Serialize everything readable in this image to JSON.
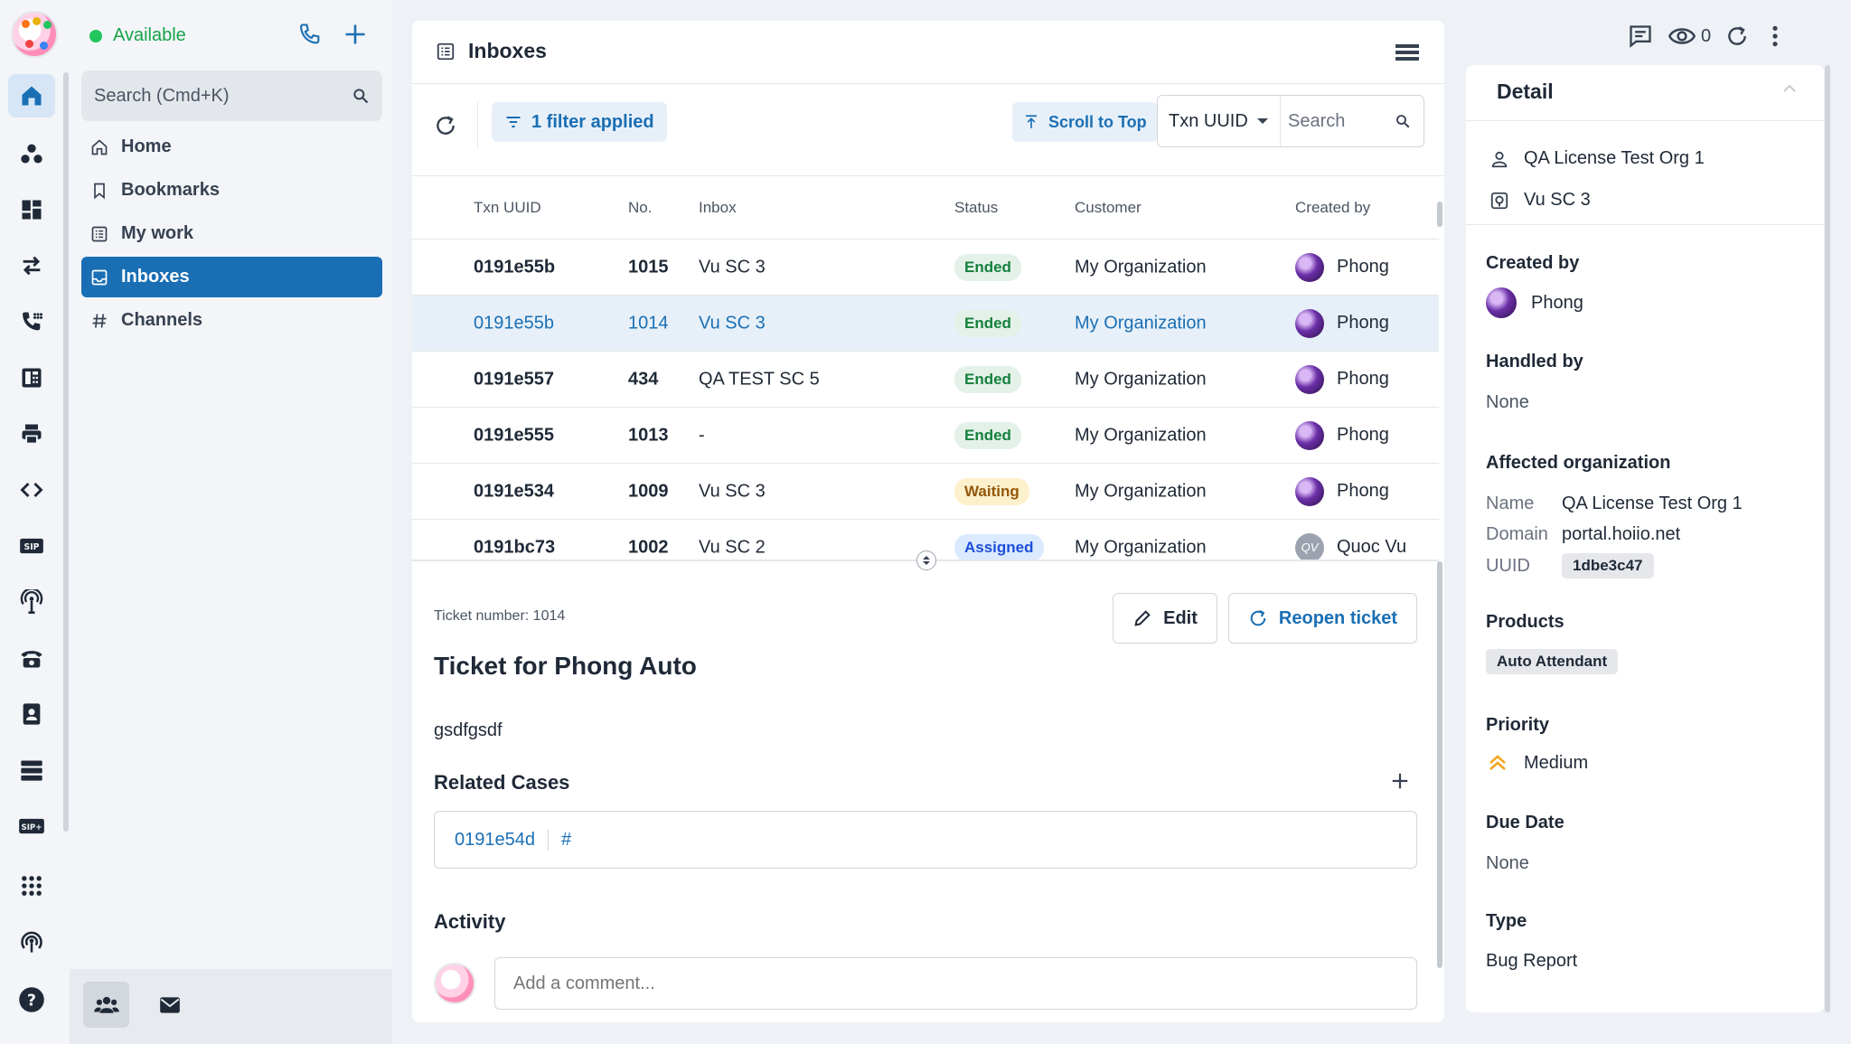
{
  "status": {
    "label": "Available",
    "color": "#22c55e"
  },
  "nav": {
    "search_placeholder": "Search (Cmd+K)",
    "items": [
      {
        "label": "Home",
        "icon": "home-icon"
      },
      {
        "label": "Bookmarks",
        "icon": "bookmark-icon"
      },
      {
        "label": "My work",
        "icon": "my-work-icon"
      },
      {
        "label": "Inboxes",
        "icon": "inbox-icon",
        "active": true
      },
      {
        "label": "Channels",
        "icon": "hash-icon"
      }
    ]
  },
  "rail": {
    "icons": [
      "home-icon",
      "people-icon",
      "dashboard-icon",
      "transfer-icon",
      "call-log-icon",
      "fax-icon",
      "printer-icon",
      "code-icon",
      "sip-icon",
      "antenna-icon",
      "desk-phone-icon",
      "contacts-icon",
      "servers-icon",
      "sip-plus-icon",
      "apps-grid-icon",
      "broadcast-icon",
      "help-icon"
    ]
  },
  "center": {
    "title": "Inboxes",
    "filter_label": "1 filter applied",
    "scroll_top_label": "Scroll to Top",
    "search_field": "Txn UUID",
    "search_placeholder": "Search"
  },
  "table": {
    "headers": [
      "Txn UUID",
      "No.",
      "Inbox",
      "Status",
      "Customer",
      "Created by"
    ],
    "rows": [
      {
        "uuid": "0191e55b",
        "no": "1015",
        "inbox": "Vu SC 3",
        "status": "Ended",
        "customer": "My Organization",
        "creator": "Phong"
      },
      {
        "uuid": "0191e55b",
        "no": "1014",
        "inbox": "Vu SC 3",
        "status": "Ended",
        "customer": "My Organization",
        "creator": "Phong",
        "selected": true
      },
      {
        "uuid": "0191e557",
        "no": "434",
        "inbox": "QA TEST SC 5",
        "status": "Ended",
        "customer": "My Organization",
        "creator": "Phong"
      },
      {
        "uuid": "0191e555",
        "no": "1013",
        "inbox": "-",
        "status": "Ended",
        "customer": "My Organization",
        "creator": "Phong"
      },
      {
        "uuid": "0191e534",
        "no": "1009",
        "inbox": "Vu SC 3",
        "status": "Waiting",
        "customer": "My Organization",
        "creator": "Phong"
      },
      {
        "uuid": "0191bc73",
        "no": "1002",
        "inbox": "Vu SC 2",
        "status": "Assigned",
        "customer": "My Organization",
        "creator": "Quoc Vu",
        "avatar_initials": "QV"
      }
    ]
  },
  "ticket": {
    "number_label": "Ticket number: 1014",
    "edit_label": "Edit",
    "reopen_label": "Reopen ticket",
    "title": "Ticket for Phong Auto",
    "description": "gsdfgsdf",
    "related_title": "Related Cases",
    "related_case": "0191e54d",
    "related_hash": "#",
    "activity_title": "Activity",
    "comment_placeholder": "Add a comment..."
  },
  "topbar": {
    "watchers": "0"
  },
  "detail": {
    "title": "Detail",
    "org": "QA License Test Org 1",
    "inbox": "Vu SC 3",
    "created_by_label": "Created by",
    "created_by": "Phong",
    "handled_by_label": "Handled by",
    "handled_by": "None",
    "affected_label": "Affected organization",
    "name_key": "Name",
    "name_val": "QA License Test Org 1",
    "domain_key": "Domain",
    "domain_val": "portal.hoiio.net",
    "uuid_key": "UUID",
    "uuid_val": "1dbe3c47",
    "products_label": "Products",
    "product": "Auto Attendant",
    "priority_label": "Priority",
    "priority": "Medium",
    "priority_color": "#f5a524",
    "due_label": "Due Date",
    "due": "None",
    "type_label": "Type",
    "type": "Bug Report"
  },
  "colors": {
    "accent": "#1a6fb4",
    "ended": "#15803d",
    "waiting": "#92580a",
    "assigned": "#1d4ed8"
  }
}
